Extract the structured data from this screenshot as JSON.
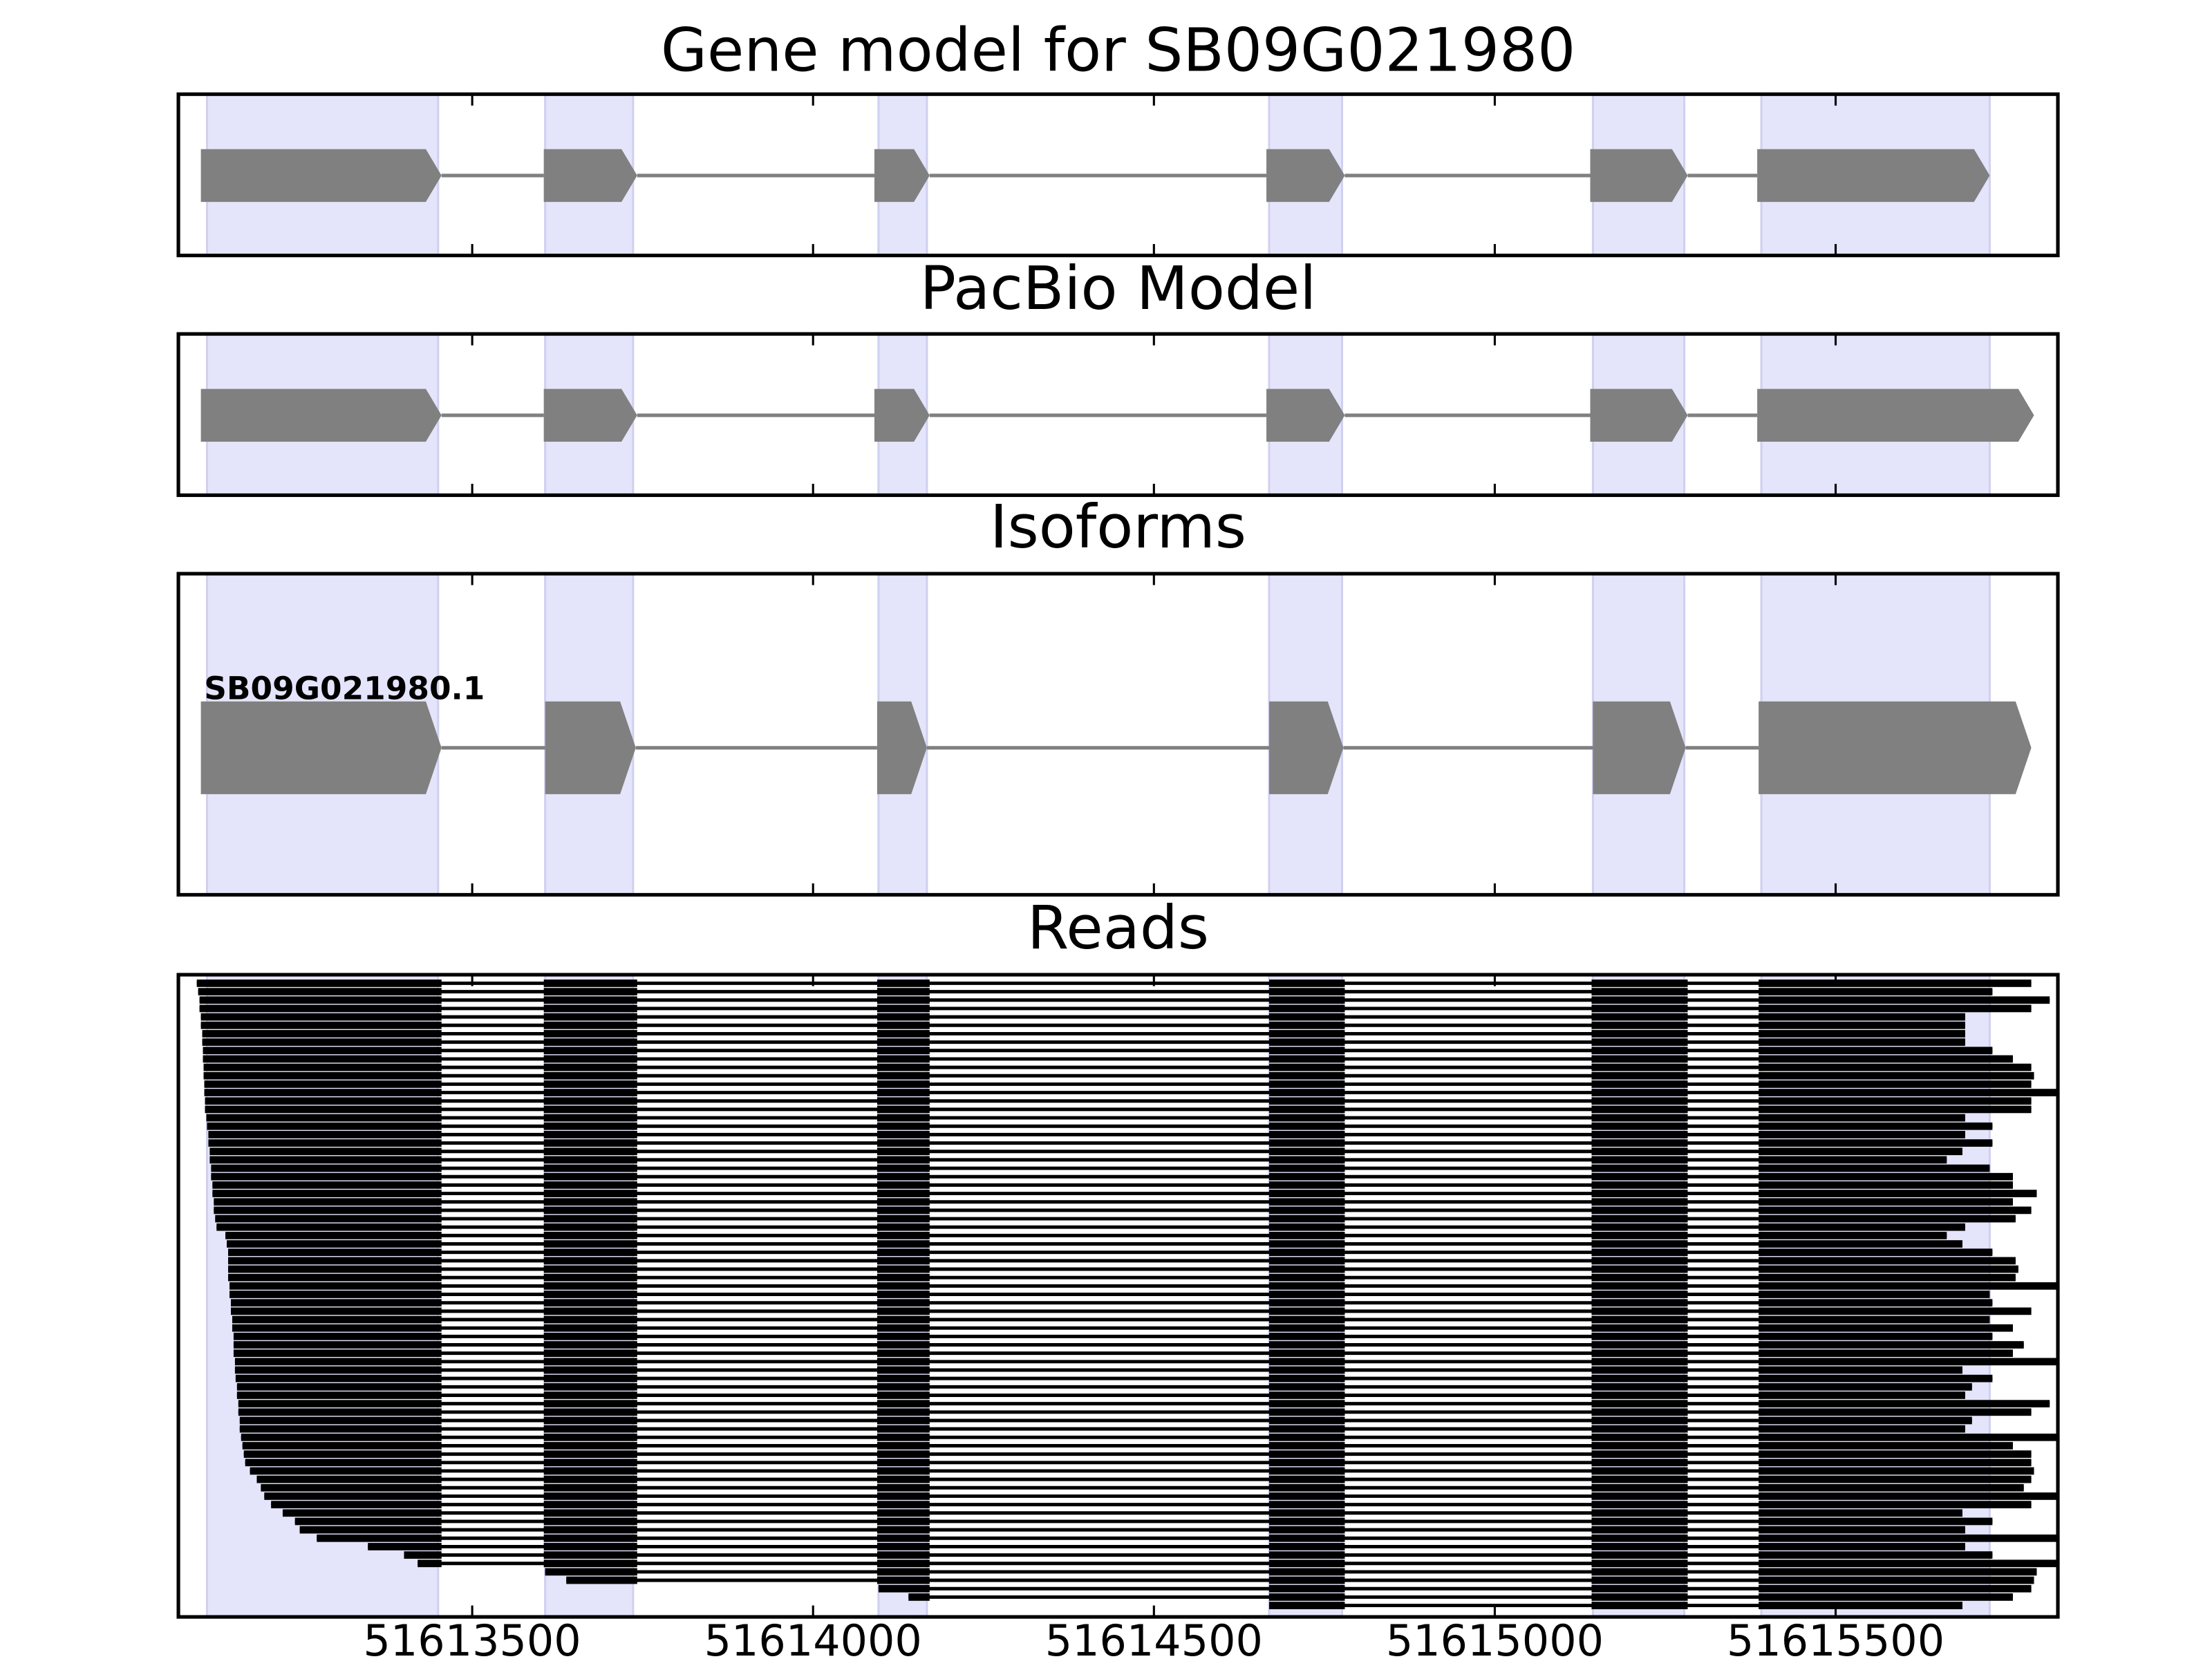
{
  "chart_data": {
    "type": "gene_tracks",
    "xlim": [
      51613069,
      51615826
    ],
    "xticks": [
      51613500,
      51614000,
      51614500,
      51615000,
      51615500
    ],
    "highlight_color": "#e4e4fb",
    "exon_color": "#808080",
    "read_color": "#000000",
    "highlight_exons": [
      [
        51613111,
        51613450
      ],
      [
        51613607,
        51613736
      ],
      [
        51614096,
        51614167
      ],
      [
        51614669,
        51614776
      ],
      [
        51615144,
        51615278
      ],
      [
        51615391,
        51615726
      ]
    ],
    "panels": [
      {
        "title": "Gene model for SB09G021980",
        "exons": [
          [
            51613102,
            51613455
          ],
          [
            51613605,
            51613742
          ],
          [
            51614090,
            51614171
          ],
          [
            51614665,
            51614780
          ],
          [
            51615140,
            51615283
          ],
          [
            51615385,
            51615726
          ]
        ]
      },
      {
        "title": "PacBio Model",
        "exons": [
          [
            51613102,
            51613455
          ],
          [
            51613605,
            51613742
          ],
          [
            51614090,
            51614171
          ],
          [
            51614665,
            51614780
          ],
          [
            51615140,
            51615283
          ],
          [
            51615385,
            51615791
          ]
        ]
      },
      {
        "title": "Isoforms",
        "isoforms": [
          {
            "name": "SB09G021980.1",
            "exons": [
              [
                51613102,
                51613455
              ],
              [
                51613607,
                51613740
              ],
              [
                51614094,
                51614167
              ],
              [
                51614669,
                51614778
              ],
              [
                51615144,
                51615280
              ],
              [
                51615387,
                51615787
              ]
            ]
          }
        ]
      },
      {
        "title": "Reads",
        "read_exons": [
          [
            51613111,
            51613455
          ],
          [
            51613605,
            51613742
          ],
          [
            51614094,
            51614171
          ],
          [
            51614669,
            51614780
          ],
          [
            51615142,
            51615283
          ],
          [
            51615387,
            51615726
          ]
        ],
        "reads": [
          [
            51613096,
            51615787
          ],
          [
            51613098,
            51615730
          ],
          [
            51613100,
            51615814
          ],
          [
            51613100,
            51615787
          ],
          [
            51613102,
            51615690
          ],
          [
            51613102,
            51615690
          ],
          [
            51613104,
            51615690
          ],
          [
            51613104,
            51615690
          ],
          [
            51613105,
            51615730
          ],
          [
            51613105,
            51615760
          ],
          [
            51613106,
            51615787
          ],
          [
            51613106,
            51615791
          ],
          [
            51613107,
            51615787
          ],
          [
            51613107,
            51615824
          ],
          [
            51613108,
            51615787
          ],
          [
            51613108,
            51615787
          ],
          [
            51613110,
            51615690
          ],
          [
            51613111,
            51615730
          ],
          [
            51613113,
            51615690
          ],
          [
            51613113,
            51615730
          ],
          [
            51613115,
            51615686
          ],
          [
            51613115,
            51615663
          ],
          [
            51613117,
            51615726
          ],
          [
            51613117,
            51615760
          ],
          [
            51613119,
            51615760
          ],
          [
            51613119,
            51615795
          ],
          [
            51613121,
            51615760
          ],
          [
            51613121,
            51615787
          ],
          [
            51613123,
            51615764
          ],
          [
            51613125,
            51615690
          ],
          [
            51613138,
            51615663
          ],
          [
            51613140,
            51615686
          ],
          [
            51613142,
            51615730
          ],
          [
            51613142,
            51615764
          ],
          [
            51613142,
            51615768
          ],
          [
            51613142,
            51615764
          ],
          [
            51613144,
            51615824
          ],
          [
            51613144,
            51615726
          ],
          [
            51613146,
            51615730
          ],
          [
            51613146,
            51615787
          ],
          [
            51613148,
            51615726
          ],
          [
            51613148,
            51615760
          ],
          [
            51613150,
            51615730
          ],
          [
            51613150,
            51615776
          ],
          [
            51613150,
            51615760
          ],
          [
            51613152,
            51615824
          ],
          [
            51613152,
            51615686
          ],
          [
            51613153,
            51615730
          ],
          [
            51613155,
            51615700
          ],
          [
            51613155,
            51615690
          ],
          [
            51613157,
            51615814
          ],
          [
            51613157,
            51615787
          ],
          [
            51613159,
            51615700
          ],
          [
            51613159,
            51615690
          ],
          [
            51613161,
            51615824
          ],
          [
            51613163,
            51615760
          ],
          [
            51613165,
            51615787
          ],
          [
            51613167,
            51615787
          ],
          [
            51613174,
            51615791
          ],
          [
            51613184,
            51615787
          ],
          [
            51613190,
            51615776
          ],
          [
            51613195,
            51615824
          ],
          [
            51613205,
            51615787
          ],
          [
            51613222,
            51615686
          ],
          [
            51613240,
            51615730
          ],
          [
            51613247,
            51615690
          ],
          [
            51613272,
            51615824
          ],
          [
            51613347,
            51615690
          ],
          [
            51613400,
            51615730
          ],
          [
            51613420,
            51615824
          ],
          [
            51613607,
            51615795
          ],
          [
            51613638,
            51615791
          ],
          [
            51614096,
            51615787
          ],
          [
            51614140,
            51615760
          ],
          [
            51614669,
            51615686
          ]
        ]
      }
    ]
  }
}
